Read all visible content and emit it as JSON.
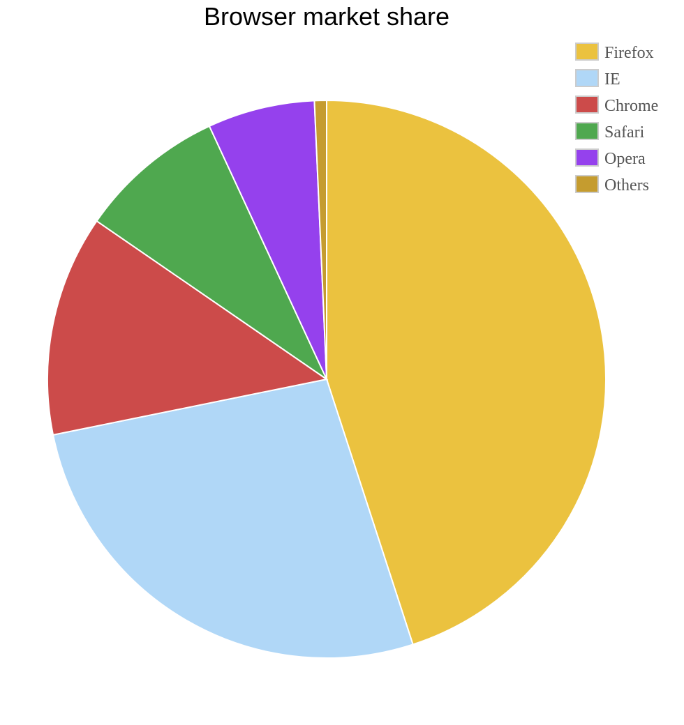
{
  "chart_data": {
    "type": "pie",
    "title": "Browser market share",
    "legend_position": "top-right",
    "categories": [
      "Firefox",
      "IE",
      "Chrome",
      "Safari",
      "Opera",
      "Others"
    ],
    "values": [
      45.0,
      26.8,
      12.8,
      8.5,
      6.2,
      0.7
    ],
    "colors": [
      "#ebc23f",
      "#b0d7f7",
      "#cc4b4a",
      "#4fa84f",
      "#9541ed",
      "#c59c2f"
    ]
  }
}
